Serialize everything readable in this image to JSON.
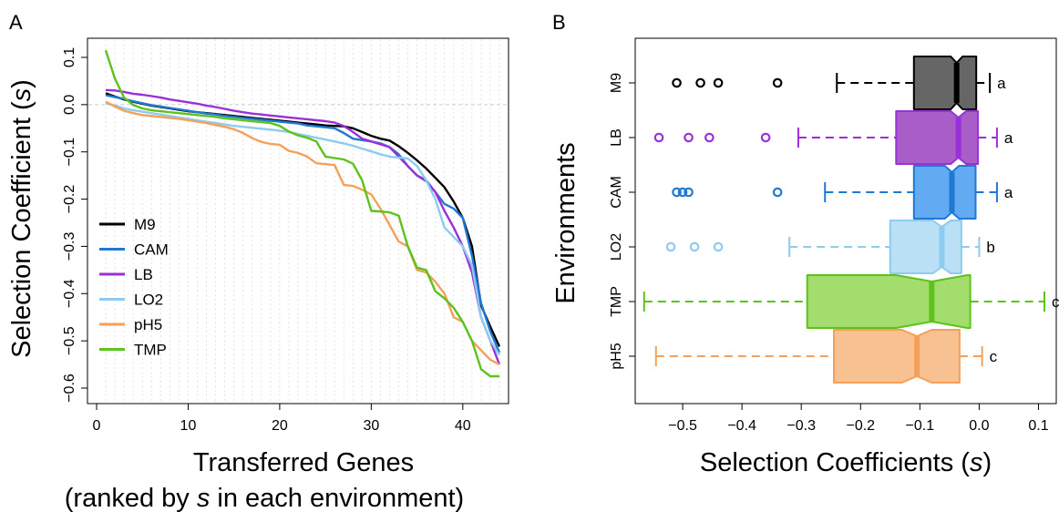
{
  "chart_data": [
    {
      "panel_label": "A",
      "type": "line",
      "xlabel": "Transferred Genes",
      "xlabel_line2_prefix": "(ranked by ",
      "xlabel_line2_var": "s",
      "xlabel_line2_suffix": " in each environment)",
      "ylabel_prefix": "Selection Coefficient (",
      "ylabel_var": "s",
      "ylabel_suffix": ")",
      "xlim": [
        0,
        44
      ],
      "ylim": [
        -0.6,
        0.1
      ],
      "xticks": [
        0,
        10,
        20,
        30,
        40
      ],
      "yticks": [
        0.1,
        0.0,
        -0.1,
        -0.2,
        -0.3,
        -0.4,
        -0.5,
        -0.6
      ],
      "ytick_labels": [
        "0.1",
        "0.0",
        "−0.1",
        "−0.2",
        "−0.3",
        "−0.4",
        "−0.5",
        "−0.6"
      ],
      "legend_position": "bottom-left",
      "series": [
        {
          "name": "M9",
          "color": "#000000",
          "values": [
            0.024,
            0.017,
            0.011,
            0.006,
            0.002,
            -0.002,
            -0.005,
            -0.008,
            -0.011,
            -0.014,
            -0.016,
            -0.018,
            -0.02,
            -0.022,
            -0.024,
            -0.026,
            -0.028,
            -0.03,
            -0.032,
            -0.034,
            -0.036,
            -0.038,
            -0.04,
            -0.042,
            -0.044,
            -0.045,
            -0.046,
            -0.05,
            -0.058,
            -0.066,
            -0.072,
            -0.076,
            -0.088,
            -0.102,
            -0.118,
            -0.135,
            -0.155,
            -0.175,
            -0.205,
            -0.24,
            -0.3,
            -0.425,
            -0.47,
            -0.512
          ]
        },
        {
          "name": "CAM",
          "color": "#1f78d4",
          "values": [
            0.02,
            0.016,
            0.012,
            0.007,
            0.003,
            -0.001,
            -0.004,
            -0.007,
            -0.01,
            -0.013,
            -0.016,
            -0.019,
            -0.021,
            -0.024,
            -0.026,
            -0.028,
            -0.03,
            -0.032,
            -0.034,
            -0.036,
            -0.038,
            -0.04,
            -0.044,
            -0.046,
            -0.048,
            -0.05,
            -0.06,
            -0.072,
            -0.075,
            -0.078,
            -0.082,
            -0.09,
            -0.105,
            -0.13,
            -0.15,
            -0.16,
            -0.185,
            -0.21,
            -0.22,
            -0.24,
            -0.32,
            -0.42,
            -0.48,
            -0.525
          ]
        },
        {
          "name": "LB",
          "color": "#9b30d9",
          "values": [
            0.031,
            0.03,
            0.027,
            0.023,
            0.021,
            0.018,
            0.015,
            0.011,
            0.008,
            0.005,
            0.002,
            -0.002,
            -0.005,
            -0.009,
            -0.013,
            -0.016,
            -0.019,
            -0.021,
            -0.023,
            -0.025,
            -0.027,
            -0.029,
            -0.031,
            -0.033,
            -0.035,
            -0.038,
            -0.045,
            -0.058,
            -0.072,
            -0.078,
            -0.084,
            -0.09,
            -0.11,
            -0.13,
            -0.15,
            -0.162,
            -0.185,
            -0.225,
            -0.26,
            -0.3,
            -0.355,
            -0.45,
            -0.5,
            -0.55
          ]
        },
        {
          "name": "LO2",
          "color": "#8ecbef",
          "values": [
            0.003,
            -0.002,
            -0.008,
            -0.012,
            -0.015,
            -0.018,
            -0.021,
            -0.024,
            -0.027,
            -0.03,
            -0.033,
            -0.036,
            -0.039,
            -0.042,
            -0.045,
            -0.047,
            -0.049,
            -0.051,
            -0.053,
            -0.055,
            -0.058,
            -0.062,
            -0.066,
            -0.07,
            -0.074,
            -0.078,
            -0.082,
            -0.087,
            -0.093,
            -0.099,
            -0.105,
            -0.11,
            -0.112,
            -0.114,
            -0.13,
            -0.16,
            -0.2,
            -0.26,
            -0.28,
            -0.3,
            -0.34,
            -0.45,
            -0.5,
            -0.53
          ]
        },
        {
          "name": "pH5",
          "color": "#f5a05a",
          "values": [
            0.006,
            -0.004,
            -0.013,
            -0.018,
            -0.022,
            -0.024,
            -0.026,
            -0.028,
            -0.03,
            -0.033,
            -0.036,
            -0.039,
            -0.043,
            -0.047,
            -0.052,
            -0.06,
            -0.071,
            -0.079,
            -0.083,
            -0.085,
            -0.098,
            -0.102,
            -0.11,
            -0.124,
            -0.126,
            -0.128,
            -0.17,
            -0.172,
            -0.18,
            -0.19,
            -0.22,
            -0.255,
            -0.29,
            -0.3,
            -0.35,
            -0.355,
            -0.375,
            -0.4,
            -0.45,
            -0.46,
            -0.5,
            -0.52,
            -0.54,
            -0.55
          ]
        },
        {
          "name": "TMP",
          "color": "#5cc21c",
          "values": [
            0.115,
            0.055,
            0.015,
            -0.001,
            -0.008,
            -0.012,
            -0.014,
            -0.016,
            -0.018,
            -0.02,
            -0.022,
            -0.024,
            -0.026,
            -0.029,
            -0.031,
            -0.033,
            -0.035,
            -0.037,
            -0.039,
            -0.045,
            -0.057,
            -0.065,
            -0.07,
            -0.078,
            -0.11,
            -0.113,
            -0.116,
            -0.125,
            -0.16,
            -0.225,
            -0.226,
            -0.228,
            -0.235,
            -0.3,
            -0.345,
            -0.35,
            -0.395,
            -0.41,
            -0.43,
            -0.46,
            -0.5,
            -0.56,
            -0.575,
            -0.575
          ]
        }
      ]
    },
    {
      "panel_label": "B",
      "type": "boxplot",
      "orientation": "horizontal",
      "notched": true,
      "xlabel_prefix": "Selection Coefficients (",
      "xlabel_var": "s",
      "xlabel_suffix": ")",
      "ylabel": "Environments",
      "xlim": [
        -0.58,
        0.13
      ],
      "xticks": [
        -0.5,
        -0.4,
        -0.3,
        -0.2,
        -0.1,
        0.0,
        0.1
      ],
      "xtick_labels": [
        "−0.5",
        "−0.4",
        "−0.3",
        "−0.2",
        "−0.1",
        "0.0",
        "0.1"
      ],
      "boxes": [
        {
          "name": "M9",
          "color": "#000000",
          "fill": "#666666",
          "whisker_low": -0.24,
          "q1": -0.11,
          "median": -0.038,
          "q3": -0.005,
          "notch": [
            -0.048,
            -0.028
          ],
          "whisker_high": 0.018,
          "outliers": [
            -0.51,
            -0.47,
            -0.44,
            -0.34
          ],
          "group": "a"
        },
        {
          "name": "LB",
          "color": "#9b30d9",
          "fill": "#a85dc8",
          "whisker_low": -0.305,
          "q1": -0.14,
          "median": -0.035,
          "q3": -0.002,
          "notch": [
            -0.048,
            -0.022
          ],
          "whisker_high": 0.03,
          "outliers": [
            -0.54,
            -0.49,
            -0.455,
            -0.36
          ],
          "group": "a"
        },
        {
          "name": "CAM",
          "color": "#1f78d4",
          "fill": "#62aaf2",
          "whisker_low": -0.26,
          "q1": -0.11,
          "median": -0.046,
          "q3": -0.006,
          "notch": [
            -0.058,
            -0.034
          ],
          "whisker_high": 0.03,
          "outliers": [
            -0.51,
            -0.5,
            -0.49,
            -0.34
          ],
          "group": "a"
        },
        {
          "name": "LO2",
          "color": "#8ecbef",
          "fill": "#b9e0f5",
          "whisker_low": -0.32,
          "q1": -0.15,
          "median": -0.063,
          "q3": -0.03,
          "notch": [
            -0.078,
            -0.048
          ],
          "whisker_high": 0.0,
          "outliers": [
            -0.52,
            -0.48,
            -0.44
          ],
          "group": "b"
        },
        {
          "name": "TMP",
          "color": "#5cc21c",
          "fill": "#a2dd6e",
          "whisker_low": -0.565,
          "q1": -0.29,
          "median": -0.08,
          "q3": -0.015,
          "notch": [
            -0.14,
            -0.02
          ],
          "whisker_high": 0.11,
          "outliers": [],
          "group": "c"
        },
        {
          "name": "pH5",
          "color": "#f5a05a",
          "fill": "#f7c192",
          "whisker_low": -0.545,
          "q1": -0.245,
          "median": -0.105,
          "q3": -0.033,
          "notch": [
            -0.13,
            -0.08
          ],
          "whisker_high": 0.005,
          "outliers": [],
          "group": "c"
        }
      ]
    }
  ]
}
